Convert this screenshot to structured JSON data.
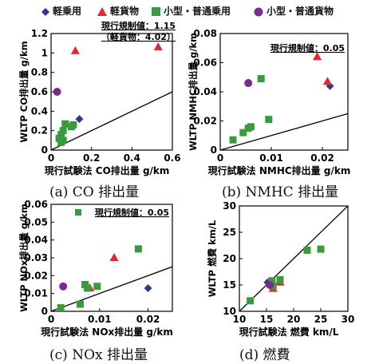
{
  "legend": {
    "items": [
      {
        "label": "軽乗用",
        "shape": "diamond",
        "color": "#2e3a8c"
      },
      {
        "label": "軽貨物",
        "shape": "triangle",
        "color": "#e8262d"
      },
      {
        "label": "小型・普通乗用",
        "shape": "square",
        "color": "#3a9a3f"
      },
      {
        "label": "小型・普通貨物",
        "shape": "circle",
        "color": "#7b2a8f"
      }
    ]
  },
  "colors": {
    "kei_passenger": "#2e3a8c",
    "kei_cargo": "#e8262d",
    "small_passenger": "#3a9a3f",
    "small_cargo": "#7b2a8f",
    "reference_line": "#000000"
  },
  "chart_data": [
    {
      "type": "scatter",
      "caption": "(a)  CO 排出量",
      "xlabel": "現行試験法 CO排出量 g/km",
      "ylabel": "WLTP CO排出量 g/km",
      "xlim": [
        0,
        0.6
      ],
      "ylim": [
        0,
        1.2
      ],
      "xticks": [
        "0",
        "0.2",
        "0.4",
        "0.6"
      ],
      "yticks": [
        "0",
        "0.2",
        "0.4",
        "0.6",
        "0.8",
        "1",
        "1.2"
      ],
      "xtickvals": [
        0,
        0.2,
        0.4,
        0.6
      ],
      "ytickvals": [
        0,
        0.2,
        0.4,
        0.6,
        0.8,
        1.0,
        1.2
      ],
      "annotation": [
        "現行規制値：1.15",
        "（軽貨物：4.02）"
      ],
      "line": [
        [
          0,
          0
        ],
        [
          0.6,
          0.6
        ]
      ],
      "series": [
        {
          "name": "軽乗用",
          "shape": "diamond",
          "points": [
            [
              0.14,
              0.32
            ]
          ]
        },
        {
          "name": "軽貨物",
          "shape": "triangle",
          "points": [
            [
              0.12,
              1.02
            ],
            [
              0.53,
              1.06
            ]
          ]
        },
        {
          "name": "小型・普通乗用",
          "shape": "square",
          "points": [
            [
              0.04,
              0.12
            ],
            [
              0.05,
              0.16
            ],
            [
              0.06,
              0.2
            ],
            [
              0.07,
              0.27
            ],
            [
              0.1,
              0.24
            ],
            [
              0.11,
              0.26
            ],
            [
              0.05,
              0.08
            ],
            [
              0.06,
              0.1
            ]
          ]
        },
        {
          "name": "小型・普通貨物",
          "shape": "circle",
          "points": [
            [
              0.03,
              0.6
            ]
          ]
        }
      ]
    },
    {
      "type": "scatter",
      "caption": "(b)  NMHC 排出量",
      "xlabel": "現行試験法 NMHC排出量 g/km",
      "ylabel": "WLTP NMHC排出量 g/km",
      "xlim": [
        0,
        0.025
      ],
      "ylim": [
        0,
        0.08
      ],
      "xticks": [
        "0",
        "0.01",
        "0.02"
      ],
      "yticks": [
        "0",
        "0.02",
        "0.04",
        "0.06",
        "0.08"
      ],
      "xtickvals": [
        0,
        0.01,
        0.02
      ],
      "ytickvals": [
        0,
        0.02,
        0.04,
        0.06,
        0.08
      ],
      "annotation": [
        "現行規制値：0.05"
      ],
      "line": [
        [
          0,
          0
        ],
        [
          0.025,
          0.025
        ]
      ],
      "series": [
        {
          "name": "軽乗用",
          "shape": "diamond",
          "points": [
            [
              0.0215,
              0.044
            ]
          ]
        },
        {
          "name": "軽貨物",
          "shape": "triangle",
          "points": [
            [
              0.019,
              0.064
            ],
            [
              0.021,
              0.047
            ]
          ]
        },
        {
          "name": "小型・普通乗用",
          "shape": "square",
          "points": [
            [
              0.0025,
              0.007
            ],
            [
              0.0045,
              0.012
            ],
            [
              0.0055,
              0.015
            ],
            [
              0.006,
              0.016
            ],
            [
              0.008,
              0.049
            ],
            [
              0.0095,
              0.021
            ]
          ]
        },
        {
          "name": "小型・普通貨物",
          "shape": "circle",
          "points": [
            [
              0.0055,
              0.046
            ]
          ]
        }
      ]
    },
    {
      "type": "scatter",
      "caption": "(c)  NOx 排出量",
      "xlabel": "現行試験法 NOx排出量 g/km",
      "ylabel": "WLTP NOx排出量 g/km",
      "xlim": [
        0,
        0.025
      ],
      "ylim": [
        0,
        0.06
      ],
      "xticks": [
        "0",
        "0.01",
        "0.02"
      ],
      "yticks": [
        "0",
        "0.01",
        "0.02",
        "0.03",
        "0.04",
        "0.05",
        "0.06"
      ],
      "xtickvals": [
        0,
        0.01,
        0.02
      ],
      "ytickvals": [
        0,
        0.01,
        0.02,
        0.03,
        0.04,
        0.05,
        0.06
      ],
      "annotation": [
        "現行規制値：0.05"
      ],
      "line": [
        [
          0,
          0
        ],
        [
          0.025,
          0.025
        ]
      ],
      "series": [
        {
          "name": "軽乗用",
          "shape": "diamond",
          "points": [
            [
              0.02,
              0.013
            ]
          ]
        },
        {
          "name": "軽貨物",
          "shape": "triangle",
          "points": [
            [
              0.008,
              0.013
            ],
            [
              0.013,
              0.03
            ]
          ]
        },
        {
          "name": "小型・普通乗用",
          "shape": "square",
          "points": [
            [
              0.002,
              0.002
            ],
            [
              0.006,
              0.004
            ],
            [
              0.007,
              0.015
            ],
            [
              0.0075,
              0.013
            ],
            [
              0.0095,
              0.014
            ],
            [
              0.018,
              0.035
            ]
          ]
        },
        {
          "name": "小型・普通貨物",
          "shape": "circle",
          "points": [
            [
              0.0025,
              0.014
            ]
          ]
        }
      ]
    },
    {
      "type": "scatter",
      "caption": "(d)  燃費",
      "xlabel": "現行試験法 燃費 km/L",
      "ylabel": "WLTP 燃費 km/L",
      "xlim": [
        10,
        30
      ],
      "ylim": [
        10,
        30
      ],
      "xticks": [
        "10",
        "15",
        "20",
        "25",
        "30"
      ],
      "yticks": [
        "10",
        "15",
        "20",
        "25",
        "30"
      ],
      "xtickvals": [
        10,
        15,
        20,
        25,
        30
      ],
      "ytickvals": [
        10,
        15,
        20,
        25,
        30
      ],
      "annotation": [],
      "line": [
        [
          10,
          10
        ],
        [
          30,
          30
        ]
      ],
      "series": [
        {
          "name": "軽乗用",
          "shape": "diamond",
          "points": [
            [
              15.2,
              15.5
            ]
          ]
        },
        {
          "name": "軽貨物",
          "shape": "triangle",
          "points": [
            [
              16.2,
              14.3
            ],
            [
              17.5,
              15.5
            ]
          ]
        },
        {
          "name": "小型・普通乗用",
          "shape": "square",
          "points": [
            [
              12.0,
              12.0
            ],
            [
              16.0,
              15.8
            ],
            [
              16.2,
              14.8
            ],
            [
              17.5,
              16.0
            ],
            [
              22.5,
              21.6
            ],
            [
              25.0,
              21.8
            ]
          ]
        },
        {
          "name": "小型・普通貨物",
          "shape": "circle",
          "points": [
            [
              15.6,
              15.0
            ]
          ]
        }
      ]
    }
  ]
}
